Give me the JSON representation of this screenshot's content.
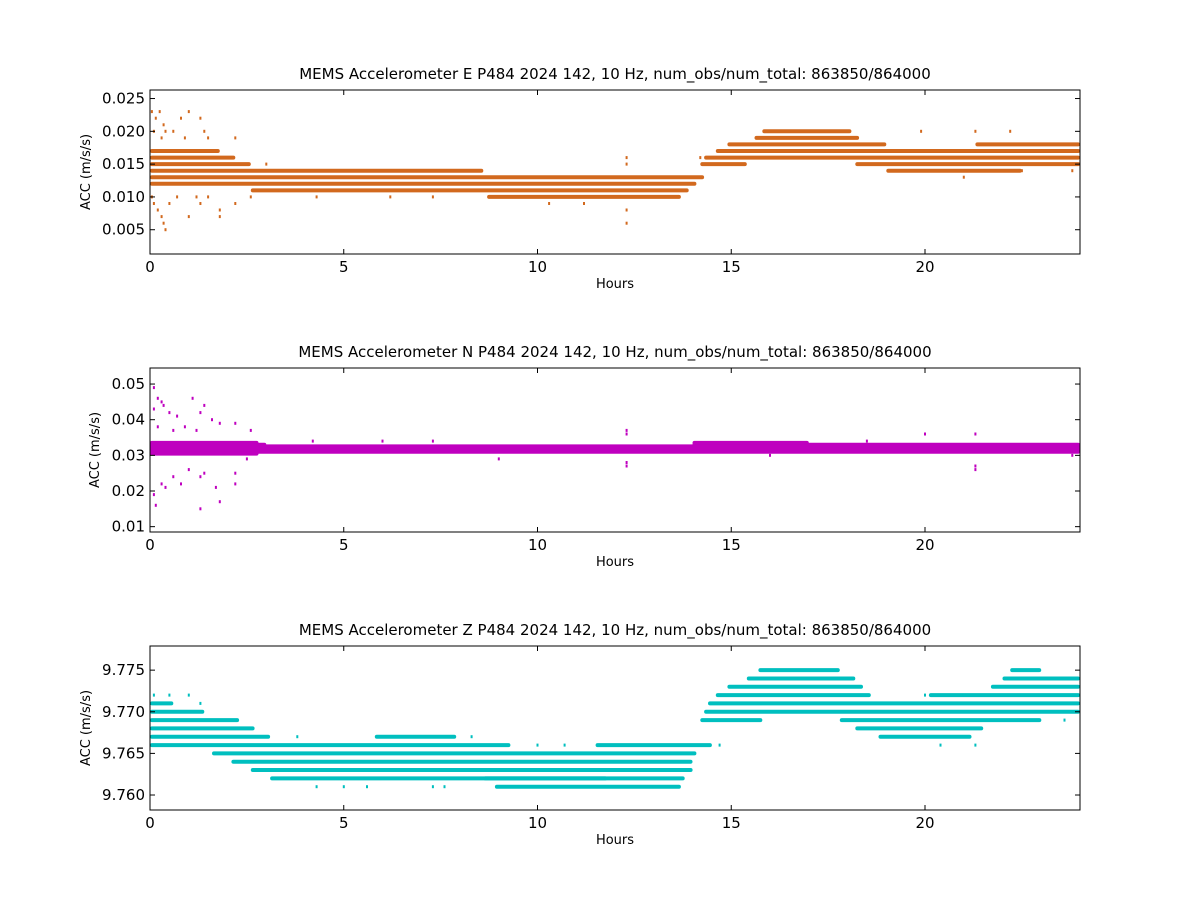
{
  "chart_data": [
    {
      "type": "scatter",
      "title": "MEMS Accelerometer E P484 2024 142, 10 Hz, num_obs/num_total: 863850/864000",
      "xlabel": "Hours",
      "ylabel": "ACC (m/s/s)",
      "color": "#d2691e",
      "xlim": [
        0,
        24
      ],
      "ylim": [
        0.0013,
        0.0263
      ],
      "xticks": [
        0,
        5,
        10,
        15,
        20
      ],
      "xtick_labels": [
        "0",
        "5",
        "10",
        "15",
        "20"
      ],
      "yticks": [
        0.005,
        0.01,
        0.015,
        0.02,
        0.025
      ],
      "ytick_labels": [
        "0.005",
        "0.010",
        "0.015",
        "0.020",
        "0.025"
      ],
      "bands": [
        {
          "y": 0.02,
          "x0": 15.8,
          "x1": 18.1
        },
        {
          "y": 0.019,
          "x0": 15.6,
          "x1": 18.3
        },
        {
          "y": 0.018,
          "x0": 14.9,
          "x1": 19.0
        },
        {
          "y": 0.018,
          "x0": 21.3,
          "x1": 24.0
        },
        {
          "y": 0.017,
          "x0": 0.0,
          "x1": 1.8
        },
        {
          "y": 0.017,
          "x0": 14.6,
          "x1": 24.0
        },
        {
          "y": 0.016,
          "x0": 0.0,
          "x1": 2.2
        },
        {
          "y": 0.016,
          "x0": 14.3,
          "x1": 24.0
        },
        {
          "y": 0.015,
          "x0": 0.0,
          "x1": 2.6
        },
        {
          "y": 0.015,
          "x0": 14.2,
          "x1": 15.4
        },
        {
          "y": 0.015,
          "x0": 18.2,
          "x1": 24.0
        },
        {
          "y": 0.014,
          "x0": 0.0,
          "x1": 8.6
        },
        {
          "y": 0.014,
          "x0": 19.0,
          "x1": 22.5
        },
        {
          "y": 0.013,
          "x0": 0.0,
          "x1": 14.3
        },
        {
          "y": 0.012,
          "x0": 0.0,
          "x1": 14.1
        },
        {
          "y": 0.011,
          "x0": 2.6,
          "x1": 13.9
        },
        {
          "y": 0.01,
          "x0": 8.7,
          "x1": 13.7
        }
      ],
      "points": [
        {
          "x": 0.05,
          "y": 0.023
        },
        {
          "x": 0.15,
          "y": 0.022
        },
        {
          "x": 0.25,
          "y": 0.023
        },
        {
          "x": 0.35,
          "y": 0.021
        },
        {
          "x": 0.1,
          "y": 0.02
        },
        {
          "x": 0.3,
          "y": 0.019
        },
        {
          "x": 0.4,
          "y": 0.02
        },
        {
          "x": 0.6,
          "y": 0.02
        },
        {
          "x": 0.8,
          "y": 0.022
        },
        {
          "x": 1.0,
          "y": 0.023
        },
        {
          "x": 1.3,
          "y": 0.022
        },
        {
          "x": 1.4,
          "y": 0.02
        },
        {
          "x": 1.5,
          "y": 0.019
        },
        {
          "x": 0.9,
          "y": 0.019
        },
        {
          "x": 0.05,
          "y": 0.01
        },
        {
          "x": 0.1,
          "y": 0.009
        },
        {
          "x": 0.2,
          "y": 0.008
        },
        {
          "x": 0.3,
          "y": 0.007
        },
        {
          "x": 0.35,
          "y": 0.006
        },
        {
          "x": 0.4,
          "y": 0.005
        },
        {
          "x": 0.5,
          "y": 0.009
        },
        {
          "x": 0.7,
          "y": 0.01
        },
        {
          "x": 1.0,
          "y": 0.007
        },
        {
          "x": 1.2,
          "y": 0.01
        },
        {
          "x": 1.3,
          "y": 0.009
        },
        {
          "x": 1.5,
          "y": 0.01
        },
        {
          "x": 1.8,
          "y": 0.008
        },
        {
          "x": 1.8,
          "y": 0.007
        },
        {
          "x": 2.2,
          "y": 0.009
        },
        {
          "x": 2.2,
          "y": 0.019
        },
        {
          "x": 2.5,
          "y": 0.015
        },
        {
          "x": 2.6,
          "y": 0.01
        },
        {
          "x": 3.0,
          "y": 0.015
        },
        {
          "x": 3.3,
          "y": 0.011
        },
        {
          "x": 4.3,
          "y": 0.01
        },
        {
          "x": 6.2,
          "y": 0.01
        },
        {
          "x": 7.3,
          "y": 0.01
        },
        {
          "x": 10.3,
          "y": 0.009
        },
        {
          "x": 11.2,
          "y": 0.009
        },
        {
          "x": 12.3,
          "y": 0.016
        },
        {
          "x": 12.3,
          "y": 0.015
        },
        {
          "x": 12.3,
          "y": 0.006
        },
        {
          "x": 12.3,
          "y": 0.008
        },
        {
          "x": 14.2,
          "y": 0.016
        },
        {
          "x": 19.9,
          "y": 0.02
        },
        {
          "x": 21.3,
          "y": 0.02
        },
        {
          "x": 22.2,
          "y": 0.02
        },
        {
          "x": 21.0,
          "y": 0.013
        },
        {
          "x": 22.5,
          "y": 0.014
        },
        {
          "x": 23.8,
          "y": 0.014
        }
      ]
    },
    {
      "type": "scatter",
      "title": "MEMS Accelerometer N P484 2024 142, 10 Hz, num_obs/num_total: 863850/864000",
      "xlabel": "Hours",
      "ylabel": "ACC (m/s/s)",
      "color": "#bf00bf",
      "xlim": [
        0,
        24
      ],
      "ylim": [
        0.0085,
        0.0545
      ],
      "xticks": [
        0,
        5,
        10,
        15,
        20
      ],
      "xtick_labels": [
        "0",
        "5",
        "10",
        "15",
        "20"
      ],
      "yticks": [
        0.01,
        0.02,
        0.03,
        0.04,
        0.05
      ],
      "ytick_labels": [
        "0.01",
        "0.02",
        "0.03",
        "0.04",
        "0.05"
      ],
      "bands": [
        {
          "y": 0.0335,
          "x0": 0.0,
          "x1": 2.8
        },
        {
          "y": 0.033,
          "x0": 0.0,
          "x1": 3.0
        },
        {
          "y": 0.0325,
          "x0": 0.0,
          "x1": 24.0
        },
        {
          "y": 0.032,
          "x0": 0.0,
          "x1": 24.0
        },
        {
          "y": 0.0315,
          "x0": 0.0,
          "x1": 24.0
        },
        {
          "y": 0.031,
          "x0": 0.0,
          "x1": 24.0
        },
        {
          "y": 0.0305,
          "x0": 0.0,
          "x1": 2.8
        },
        {
          "y": 0.033,
          "x0": 14.0,
          "x1": 24.0
        },
        {
          "y": 0.0335,
          "x0": 14.0,
          "x1": 17.0
        }
      ],
      "points": [
        {
          "x": 0.1,
          "y": 0.049
        },
        {
          "x": 0.2,
          "y": 0.046
        },
        {
          "x": 0.3,
          "y": 0.045
        },
        {
          "x": 0.35,
          "y": 0.044
        },
        {
          "x": 0.1,
          "y": 0.043
        },
        {
          "x": 0.5,
          "y": 0.042
        },
        {
          "x": 0.7,
          "y": 0.041
        },
        {
          "x": 1.1,
          "y": 0.046
        },
        {
          "x": 1.4,
          "y": 0.044
        },
        {
          "x": 1.3,
          "y": 0.042
        },
        {
          "x": 1.6,
          "y": 0.04
        },
        {
          "x": 1.8,
          "y": 0.039
        },
        {
          "x": 2.2,
          "y": 0.039
        },
        {
          "x": 2.6,
          "y": 0.037
        },
        {
          "x": 0.2,
          "y": 0.038
        },
        {
          "x": 0.6,
          "y": 0.037
        },
        {
          "x": 0.9,
          "y": 0.038
        },
        {
          "x": 1.2,
          "y": 0.037
        },
        {
          "x": 0.1,
          "y": 0.019
        },
        {
          "x": 0.15,
          "y": 0.016
        },
        {
          "x": 0.3,
          "y": 0.022
        },
        {
          "x": 0.4,
          "y": 0.021
        },
        {
          "x": 0.6,
          "y": 0.024
        },
        {
          "x": 0.8,
          "y": 0.022
        },
        {
          "x": 1.0,
          "y": 0.026
        },
        {
          "x": 1.3,
          "y": 0.015
        },
        {
          "x": 1.3,
          "y": 0.024
        },
        {
          "x": 1.4,
          "y": 0.025
        },
        {
          "x": 1.7,
          "y": 0.021
        },
        {
          "x": 1.8,
          "y": 0.017
        },
        {
          "x": 2.2,
          "y": 0.022
        },
        {
          "x": 2.2,
          "y": 0.025
        },
        {
          "x": 2.5,
          "y": 0.029
        },
        {
          "x": 9.0,
          "y": 0.029
        },
        {
          "x": 12.3,
          "y": 0.037
        },
        {
          "x": 12.3,
          "y": 0.036
        },
        {
          "x": 12.3,
          "y": 0.027
        },
        {
          "x": 12.3,
          "y": 0.028
        },
        {
          "x": 20.0,
          "y": 0.036
        },
        {
          "x": 21.3,
          "y": 0.036
        },
        {
          "x": 21.3,
          "y": 0.026
        },
        {
          "x": 21.3,
          "y": 0.027
        },
        {
          "x": 23.8,
          "y": 0.03
        },
        {
          "x": 4.2,
          "y": 0.034
        },
        {
          "x": 6.0,
          "y": 0.034
        },
        {
          "x": 7.3,
          "y": 0.034
        },
        {
          "x": 16.0,
          "y": 0.03
        },
        {
          "x": 18.5,
          "y": 0.034
        }
      ]
    },
    {
      "type": "scatter",
      "title": "MEMS Accelerometer Z P484 2024 142, 10 Hz, num_obs/num_total: 863850/864000",
      "xlabel": "Hours",
      "ylabel": "ACC (m/s/s)",
      "color": "#00bfbf",
      "xlim": [
        0,
        24
      ],
      "ylim": [
        9.7582,
        9.7779
      ],
      "xticks": [
        0,
        5,
        10,
        15,
        20
      ],
      "xtick_labels": [
        "0",
        "5",
        "10",
        "15",
        "20"
      ],
      "yticks": [
        9.76,
        9.765,
        9.77,
        9.775
      ],
      "ytick_labels": [
        "9.760",
        "9.765",
        "9.770",
        "9.775"
      ],
      "bands": [
        {
          "y": 9.775,
          "x0": 15.7,
          "x1": 17.8
        },
        {
          "y": 9.775,
          "x0": 22.2,
          "x1": 23.0
        },
        {
          "y": 9.774,
          "x0": 15.4,
          "x1": 18.2
        },
        {
          "y": 9.774,
          "x0": 22.0,
          "x1": 24.0
        },
        {
          "y": 9.773,
          "x0": 14.9,
          "x1": 18.4
        },
        {
          "y": 9.773,
          "x0": 21.7,
          "x1": 24.0
        },
        {
          "y": 9.772,
          "x0": 14.6,
          "x1": 18.6
        },
        {
          "y": 9.772,
          "x0": 20.1,
          "x1": 24.0
        },
        {
          "y": 9.771,
          "x0": 0.0,
          "x1": 0.6
        },
        {
          "y": 9.771,
          "x0": 14.4,
          "x1": 24.0
        },
        {
          "y": 9.77,
          "x0": 0.0,
          "x1": 1.4
        },
        {
          "y": 9.77,
          "x0": 14.3,
          "x1": 24.0
        },
        {
          "y": 9.769,
          "x0": 0.0,
          "x1": 2.3
        },
        {
          "y": 9.769,
          "x0": 14.2,
          "x1": 15.8
        },
        {
          "y": 9.769,
          "x0": 17.8,
          "x1": 23.0
        },
        {
          "y": 9.768,
          "x0": 0.0,
          "x1": 2.7
        },
        {
          "y": 9.768,
          "x0": 18.2,
          "x1": 21.5
        },
        {
          "y": 9.767,
          "x0": 0.0,
          "x1": 3.1
        },
        {
          "y": 9.767,
          "x0": 18.8,
          "x1": 21.2
        },
        {
          "y": 9.767,
          "x0": 5.8,
          "x1": 7.9
        },
        {
          "y": 9.766,
          "x0": 0.0,
          "x1": 9.3
        },
        {
          "y": 9.766,
          "x0": 11.5,
          "x1": 14.5
        },
        {
          "y": 9.765,
          "x0": 1.6,
          "x1": 14.1
        },
        {
          "y": 9.764,
          "x0": 2.1,
          "x1": 14.0
        },
        {
          "y": 9.763,
          "x0": 2.6,
          "x1": 14.0
        },
        {
          "y": 9.762,
          "x0": 3.1,
          "x1": 13.8
        },
        {
          "y": 9.762,
          "x0": 8.6,
          "x1": 11.8
        },
        {
          "y": 9.761,
          "x0": 8.9,
          "x1": 13.7
        }
      ],
      "points": [
        {
          "x": 0.1,
          "y": 9.772
        },
        {
          "x": 0.5,
          "y": 9.772
        },
        {
          "x": 1.0,
          "y": 9.772
        },
        {
          "x": 1.3,
          "y": 9.771
        },
        {
          "x": 3.8,
          "y": 9.767
        },
        {
          "x": 4.3,
          "y": 9.761
        },
        {
          "x": 5.0,
          "y": 9.761
        },
        {
          "x": 5.6,
          "y": 9.761
        },
        {
          "x": 7.3,
          "y": 9.761
        },
        {
          "x": 7.6,
          "y": 9.761
        },
        {
          "x": 8.3,
          "y": 9.767
        },
        {
          "x": 10.0,
          "y": 9.766
        },
        {
          "x": 10.7,
          "y": 9.766
        },
        {
          "x": 12.4,
          "y": 9.762
        },
        {
          "x": 13.0,
          "y": 9.761
        },
        {
          "x": 14.7,
          "y": 9.766
        },
        {
          "x": 20.4,
          "y": 9.766
        },
        {
          "x": 21.3,
          "y": 9.766
        },
        {
          "x": 20.0,
          "y": 9.772
        },
        {
          "x": 21.0,
          "y": 9.772
        },
        {
          "x": 23.6,
          "y": 9.769
        }
      ]
    }
  ]
}
